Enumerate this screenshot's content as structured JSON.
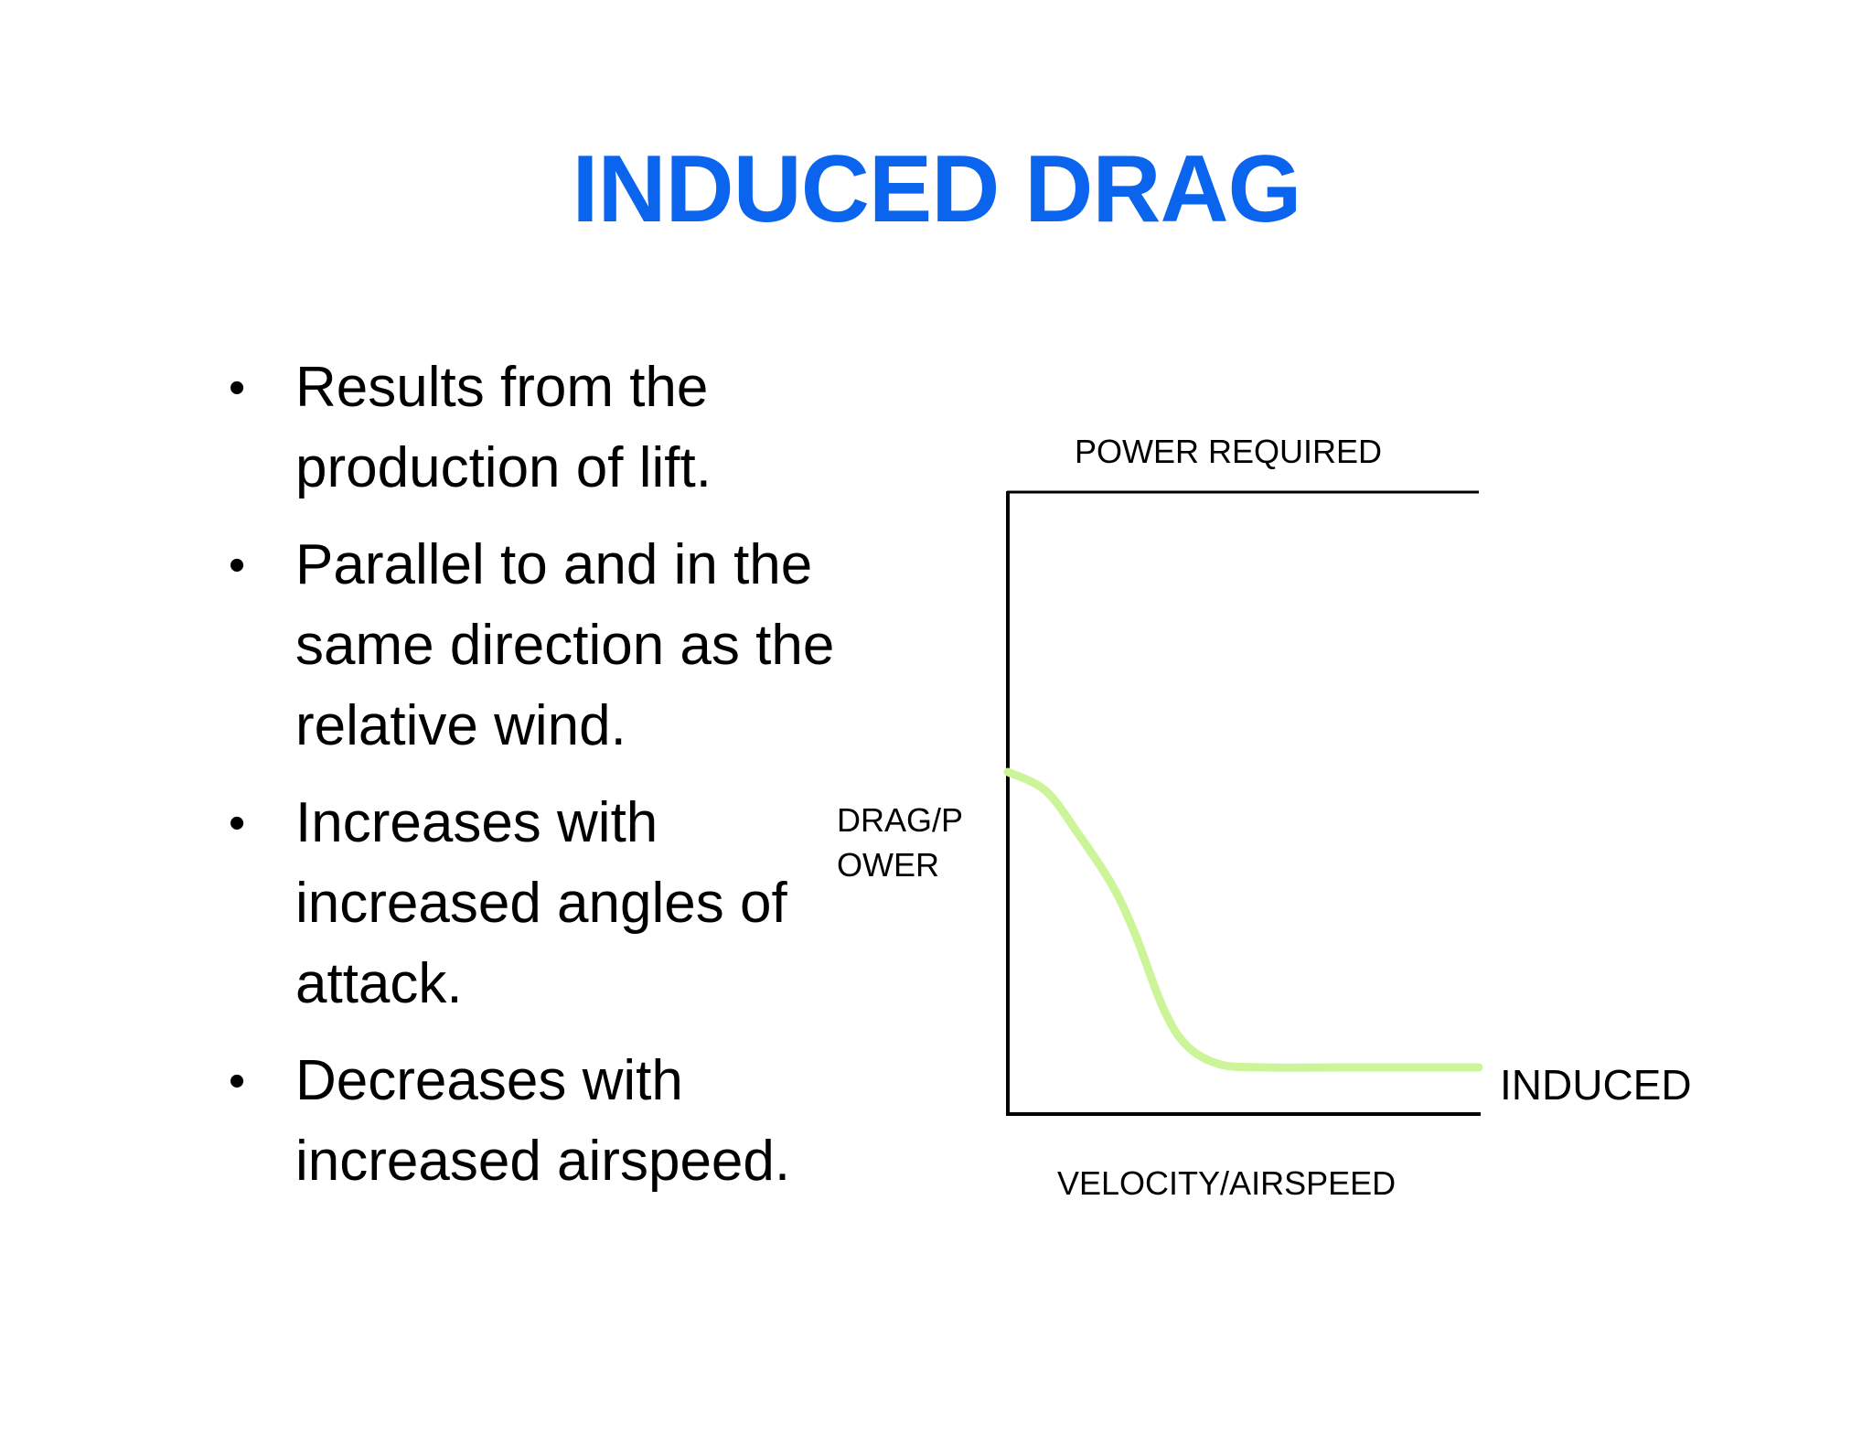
{
  "slide": {
    "title": "INDUCED DRAG",
    "title_color": "#0b64ed",
    "bullet_symbol": "•",
    "bullets": [
      {
        "line1": "Results from the",
        "line2": "production of lift.",
        "line3": ""
      },
      {
        "line1": "Parallel to and in the",
        "line2": "same direction as the",
        "line3": "relative wind."
      },
      {
        "line1": "Increases with",
        "line2": "increased angles of",
        "line3": "attack."
      },
      {
        "line1": "Decreases with",
        "line2": "increased airspeed.",
        "line3": ""
      }
    ]
  },
  "chart_data": {
    "type": "line",
    "title": "POWER REQUIRED",
    "xlabel": "VELOCITY/AIRSPEED",
    "ylabel_line1": "DRAG/P",
    "ylabel_line2": "OWER",
    "grid": false,
    "xlim": [
      0,
      100
    ],
    "ylim": [
      0,
      100
    ],
    "series": [
      {
        "name": "INDUCED",
        "color": "#ccf59a",
        "x": [
          0,
          8,
          15,
          22,
          27,
          33,
          38,
          45,
          55,
          70,
          85,
          100
        ],
        "y": [
          55,
          52,
          45,
          37,
          29,
          17,
          11,
          8,
          7.5,
          7.5,
          7.5,
          7.5
        ]
      }
    ]
  }
}
